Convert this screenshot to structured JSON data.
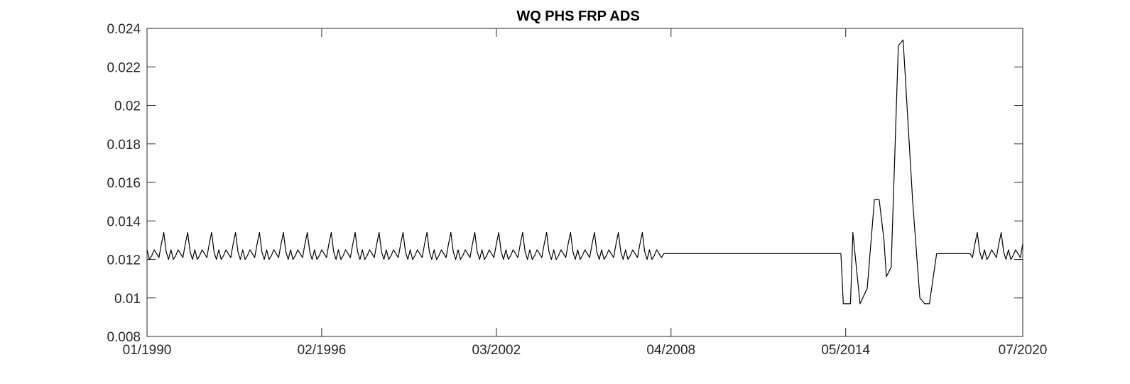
{
  "chart_data": {
    "type": "line",
    "title": "WQ PHS FRP ADS",
    "xlabel": "",
    "ylabel": "",
    "x_range": [
      "1990-01",
      "2020-07"
    ],
    "ylim": [
      0.008,
      0.024
    ],
    "grid": false,
    "legend": "none",
    "x_ticks": [
      {
        "date": "1990-01",
        "label": "01/1990"
      },
      {
        "date": "1996-02",
        "label": "02/1996"
      },
      {
        "date": "2002-03",
        "label": "03/2002"
      },
      {
        "date": "2008-04",
        "label": "04/2008"
      },
      {
        "date": "2014-05",
        "label": "05/2014"
      },
      {
        "date": "2020-07",
        "label": "07/2020"
      }
    ],
    "y_ticks": [
      {
        "value": 0.008,
        "label": "0.008"
      },
      {
        "value": 0.01,
        "label": "0.01"
      },
      {
        "value": 0.012,
        "label": "0.012"
      },
      {
        "value": 0.014,
        "label": "0.014"
      },
      {
        "value": 0.016,
        "label": "0.016"
      },
      {
        "value": 0.018,
        "label": "0.018"
      },
      {
        "value": 0.02,
        "label": "0.02"
      },
      {
        "value": 0.022,
        "label": "0.022"
      },
      {
        "value": 0.024,
        "label": "0.024"
      }
    ],
    "series": [
      {
        "color": "#000000",
        "seasonal_pattern": [
          0.0125,
          0.012,
          0.0122,
          0.0125,
          0.0123,
          0.0121,
          0.0128,
          0.0134,
          0.0124,
          0.012
        ],
        "periodic_range": [
          "1990-01",
          "2007-12"
        ],
        "periodic_range_2": [
          "2018-10",
          "2020-07"
        ],
        "points": [
          [
            "2008-01",
            0.0123
          ],
          [
            "2014-03",
            0.0123
          ],
          [
            "2014-04",
            0.0097
          ],
          [
            "2014-07",
            0.0097
          ],
          [
            "2014-08",
            0.0134
          ],
          [
            "2014-11",
            0.0097
          ],
          [
            "2015-02",
            0.0105
          ],
          [
            "2015-05",
            0.0151
          ],
          [
            "2015-07",
            0.0151
          ],
          [
            "2015-09",
            0.013
          ],
          [
            "2015-10",
            0.0111
          ],
          [
            "2015-12",
            0.0116
          ],
          [
            "2016-03",
            0.0231
          ],
          [
            "2016-05",
            0.0234
          ],
          [
            "2016-09",
            0.015
          ],
          [
            "2016-12",
            0.01
          ],
          [
            "2017-02",
            0.0097
          ],
          [
            "2017-04",
            0.0097
          ],
          [
            "2017-07",
            0.0123
          ],
          [
            "2018-09",
            0.0123
          ]
        ]
      }
    ]
  }
}
